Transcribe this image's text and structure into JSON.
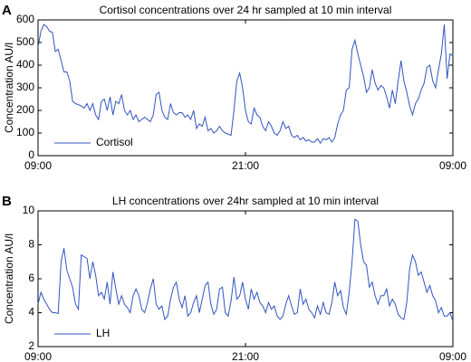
{
  "chart_data": [
    {
      "type": "line",
      "panel": "A",
      "title": "Cortisol concentrations over 24 hr sampled at 10 min interval",
      "ylabel": "Concentration AU/l",
      "x": [
        0,
        10,
        20,
        30,
        40,
        50,
        60,
        70,
        80,
        90,
        100,
        110,
        120,
        130,
        140,
        150,
        160,
        170,
        180,
        190,
        200,
        210,
        220,
        230,
        240,
        250,
        260,
        270,
        280,
        290,
        300,
        310,
        320,
        330,
        340,
        350,
        360,
        370,
        380,
        390,
        400,
        410,
        420,
        430,
        440,
        450,
        460,
        470,
        480,
        490,
        500,
        510,
        520,
        530,
        540,
        550,
        560,
        570,
        580,
        590,
        600,
        610,
        620,
        630,
        640,
        650,
        660,
        670,
        680,
        690,
        700,
        710,
        720,
        730,
        740,
        750,
        760,
        770,
        780,
        790,
        800,
        810,
        820,
        830,
        840,
        850,
        860,
        870,
        880,
        890,
        900,
        910,
        920,
        930,
        940,
        950,
        960,
        970,
        980,
        990,
        1000,
        1010,
        1020,
        1030,
        1040,
        1050,
        1060,
        1070,
        1080,
        1090,
        1100,
        1110,
        1120,
        1130,
        1140,
        1150,
        1160,
        1170,
        1180,
        1190,
        1200,
        1210,
        1220,
        1230,
        1240,
        1250,
        1260,
        1270,
        1280,
        1290,
        1300,
        1310,
        1320,
        1330,
        1340,
        1350,
        1360,
        1370,
        1380,
        1390,
        1400,
        1410,
        1420,
        1430,
        1440
      ],
      "series": [
        {
          "name": "Cortisol",
          "color": "#3355c0",
          "values": [
            480,
            550,
            580,
            570,
            550,
            545,
            460,
            470,
            420,
            370,
            370,
            330,
            240,
            230,
            225,
            220,
            210,
            230,
            200,
            230,
            180,
            160,
            240,
            250,
            200,
            260,
            180,
            240,
            230,
            270,
            200,
            180,
            200,
            160,
            180,
            150,
            160,
            170,
            160,
            150,
            180,
            270,
            280,
            200,
            170,
            160,
            230,
            190,
            180,
            190,
            190,
            170,
            180,
            160,
            200,
            120,
            140,
            130,
            170,
            110,
            120,
            100,
            110,
            130,
            110,
            100,
            95,
            90,
            200,
            330,
            365,
            300,
            200,
            150,
            140,
            210,
            180,
            170,
            130,
            110,
            150,
            130,
            100,
            90,
            110,
            150,
            120,
            130,
            90,
            80,
            90,
            70,
            80,
            65,
            70,
            60,
            60,
            75,
            55,
            75,
            70,
            80,
            60,
            80,
            140,
            180,
            200,
            290,
            300,
            470,
            510,
            450,
            400,
            350,
            280,
            300,
            380,
            320,
            290,
            310,
            300,
            260,
            210,
            290,
            230,
            330,
            420,
            330,
            280,
            220,
            180,
            230,
            250,
            290,
            320,
            390,
            400,
            330,
            300,
            380,
            450,
            580,
            340,
            450,
            440
          ]
        }
      ],
      "xlim": [
        0,
        1440
      ],
      "xticks": [
        {
          "value": 0,
          "label": "09:00"
        },
        {
          "value": 720,
          "label": "21:00"
        },
        {
          "value": 1440,
          "label": "09:00"
        }
      ],
      "ylim": [
        0,
        600
      ],
      "yticks": [
        0,
        100,
        200,
        300,
        400,
        500,
        600
      ],
      "grid": false,
      "legend": "lower left"
    },
    {
      "type": "line",
      "panel": "B",
      "title": "LH concentrations over 24hr sampled at 10 min interval",
      "ylabel": "Concentration AU/l",
      "x": [
        0,
        10,
        20,
        30,
        40,
        50,
        60,
        70,
        80,
        90,
        100,
        110,
        120,
        130,
        140,
        150,
        160,
        170,
        180,
        190,
        200,
        210,
        220,
        230,
        240,
        250,
        260,
        270,
        280,
        290,
        300,
        310,
        320,
        330,
        340,
        350,
        360,
        370,
        380,
        390,
        400,
        410,
        420,
        430,
        440,
        450,
        460,
        470,
        480,
        490,
        500,
        510,
        520,
        530,
        540,
        550,
        560,
        570,
        580,
        590,
        600,
        610,
        620,
        630,
        640,
        650,
        660,
        670,
        680,
        690,
        700,
        710,
        720,
        730,
        740,
        750,
        760,
        770,
        780,
        790,
        800,
        810,
        820,
        830,
        840,
        850,
        860,
        870,
        880,
        890,
        900,
        910,
        920,
        930,
        940,
        950,
        960,
        970,
        980,
        990,
        1000,
        1010,
        1020,
        1030,
        1040,
        1050,
        1060,
        1070,
        1080,
        1090,
        1100,
        1110,
        1120,
        1130,
        1140,
        1150,
        1160,
        1170,
        1180,
        1190,
        1200,
        1210,
        1220,
        1230,
        1240,
        1250,
        1260,
        1270,
        1280,
        1290,
        1300,
        1310,
        1320,
        1330,
        1340,
        1350,
        1360,
        1370,
        1380,
        1390,
        1400,
        1410,
        1420,
        1430,
        1440
      ],
      "series": [
        {
          "name": "LH",
          "color": "#3355c0",
          "values": [
            4.5,
            5.2,
            4.8,
            4.5,
            4.2,
            4.0,
            4.0,
            3.95,
            7.0,
            7.8,
            6.5,
            6.0,
            5.5,
            4.5,
            4.2,
            7.4,
            7.3,
            7.2,
            6.0,
            7.0,
            6.2,
            5.0,
            5.2,
            4.8,
            5.8,
            4.5,
            6.4,
            5.4,
            4.5,
            5.0,
            4.5,
            4.3,
            4.0,
            5.0,
            5.4,
            5.0,
            4.2,
            4.0,
            4.6,
            5.4,
            6.0,
            4.5,
            4.2,
            4.4,
            3.6,
            3.8,
            4.8,
            5.5,
            5.8,
            4.8,
            4.3,
            5.0,
            3.8,
            4.0,
            4.6,
            5.0,
            4.0,
            4.8,
            5.6,
            5.8,
            4.5,
            3.9,
            4.2,
            5.4,
            5.5,
            4.0,
            3.8,
            4.7,
            6.1,
            4.8,
            5.0,
            5.8,
            4.8,
            4.2,
            5.4,
            4.8,
            5.2,
            4.6,
            4.4,
            4.0,
            4.6,
            4.2,
            4.4,
            3.8,
            3.6,
            3.8,
            4.5,
            5.0,
            4.4,
            3.9,
            4.0,
            5.4,
            4.5,
            4.8,
            4.2,
            4.0,
            3.7,
            4.4,
            3.9,
            4.6,
            4.0,
            3.9,
            4.6,
            5.8,
            5.0,
            5.3,
            4.3,
            3.9,
            5.2,
            7.0,
            9.5,
            9.4,
            8.0,
            7.0,
            6.8,
            5.5,
            5.8,
            5.0,
            4.5,
            5.0,
            5.0,
            5.4,
            4.4,
            4.8,
            4.5,
            3.9,
            3.7,
            3.6,
            4.6,
            6.6,
            7.4,
            7.0,
            6.2,
            6.4,
            5.8,
            5.2,
            5.6,
            5.0,
            4.7,
            4.0,
            4.3,
            3.8,
            3.8,
            4.0,
            3.5
          ]
        }
      ],
      "xlim": [
        0,
        1440
      ],
      "xticks": [
        {
          "value": 0,
          "label": "09:00"
        },
        {
          "value": 720,
          "label": "21:00"
        },
        {
          "value": 1440,
          "label": "09:00"
        }
      ],
      "ylim": [
        2,
        10
      ],
      "yticks": [
        2,
        4,
        6,
        8,
        10
      ],
      "grid": false,
      "legend": "lower left"
    }
  ]
}
